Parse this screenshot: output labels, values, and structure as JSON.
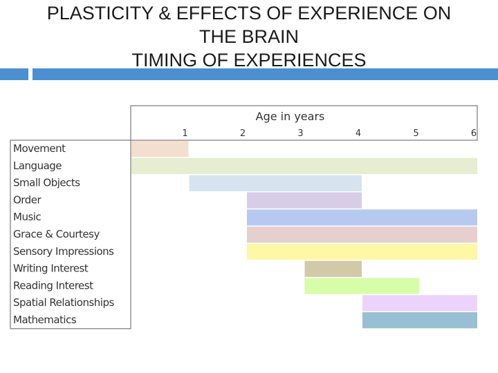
{
  "slide": {
    "title_lines": [
      "PLASTICITY & EFFECTS OF EXPERIENCE ON",
      "THE BRAIN",
      "TIMING OF EXPERIENCES"
    ],
    "accent_color": "#4b8fd0"
  },
  "chart_data": {
    "type": "bar",
    "subtype": "gantt",
    "x_axis_title": "Age in years",
    "x_ticks": [
      1,
      2,
      3,
      4,
      5,
      6
    ],
    "xlim": [
      0,
      6
    ],
    "grid": false,
    "bars": [
      {
        "label": "Movement",
        "start": 0,
        "end": 1,
        "color": "#f3dfcf"
      },
      {
        "label": "Language",
        "start": 0,
        "end": 6,
        "color": "#e6edd0"
      },
      {
        "label": "Small Objects",
        "start": 1,
        "end": 4,
        "color": "#d5e4ee"
      },
      {
        "label": "Order",
        "start": 2,
        "end": 4,
        "color": "#d8cde6"
      },
      {
        "label": "Music",
        "start": 2,
        "end": 6,
        "color": "#b8c9ef"
      },
      {
        "label": "Grace & Courtesy",
        "start": 2,
        "end": 6,
        "color": "#e5cfcf"
      },
      {
        "label": "Sensory Impressions",
        "start": 2,
        "end": 6,
        "color": "#fdf7a6"
      },
      {
        "label": "Writing Interest",
        "start": 3,
        "end": 4,
        "color": "#d2c9a8"
      },
      {
        "label": "Reading Interest",
        "start": 3,
        "end": 5,
        "color": "#d7fda9"
      },
      {
        "label": "Spatial Relationships",
        "start": 4,
        "end": 6,
        "color": "#ecd3fb"
      },
      {
        "label": "Mathematics",
        "start": 4,
        "end": 6,
        "color": "#98bfd4"
      }
    ]
  }
}
